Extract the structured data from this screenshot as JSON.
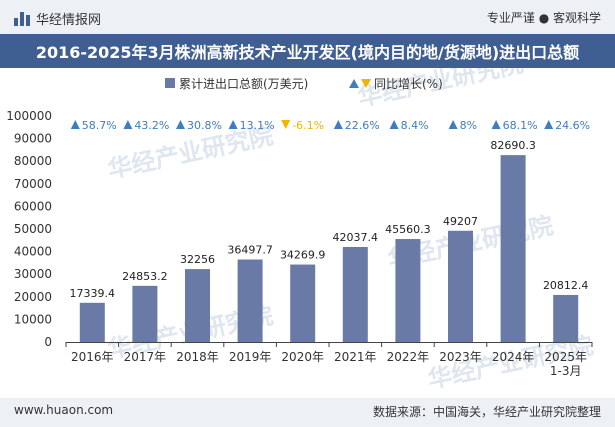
{
  "header": {
    "brand": "华经情报网",
    "tagline": "专业严谨 ● 客观科学"
  },
  "chart_data": {
    "type": "bar",
    "title": "2016-2025年3月株洲高新技术产业开发区(境内目的地/货源地)进出口总额",
    "legend": {
      "bar_label": "累计进出口总额(万美元)",
      "growth_label": "同比增长(%)",
      "placement": "top-center"
    },
    "categories": [
      "2016年",
      "2017年",
      "2018年",
      "2019年",
      "2020年",
      "2021年",
      "2022年",
      "2023年",
      "2024年",
      "2025年\n1-3月"
    ],
    "series": [
      {
        "name": "累计进出口总额(万美元)",
        "values": [
          17339.4,
          24853.2,
          32256,
          36497.7,
          34269.9,
          42037.4,
          45560.3,
          49207,
          82690.3,
          20812.4
        ],
        "value_labels": [
          "17339.4",
          "24853.2",
          "32256",
          "36497.7",
          "34269.9",
          "42037.4",
          "45560.3",
          "49207",
          "82690.3",
          "20812.4"
        ]
      },
      {
        "name": "同比增长(%)",
        "values": [
          58.7,
          43.2,
          30.8,
          13.1,
          -6.1,
          22.6,
          8.4,
          8,
          68.1,
          24.6
        ],
        "value_labels": [
          "58.7%",
          "43.2%",
          "30.8%",
          "13.1%",
          "-6.1%",
          "22.6%",
          "8.4%",
          "8%",
          "68.1%",
          "24.6%"
        ]
      }
    ],
    "ylim": [
      0,
      100000
    ],
    "yticks": [
      "0",
      "10000",
      "20000",
      "30000",
      "40000",
      "50000",
      "60000",
      "70000",
      "80000",
      "90000",
      "100000"
    ],
    "colors": {
      "bar": "#6a7aa6",
      "up": "#3f7dbf",
      "down": "#f0b400"
    }
  },
  "watermark": "华经产业研究院",
  "footer": {
    "website": "www.huaon.com",
    "source": "数据来源：中国海关，华经产业研究院整理"
  }
}
